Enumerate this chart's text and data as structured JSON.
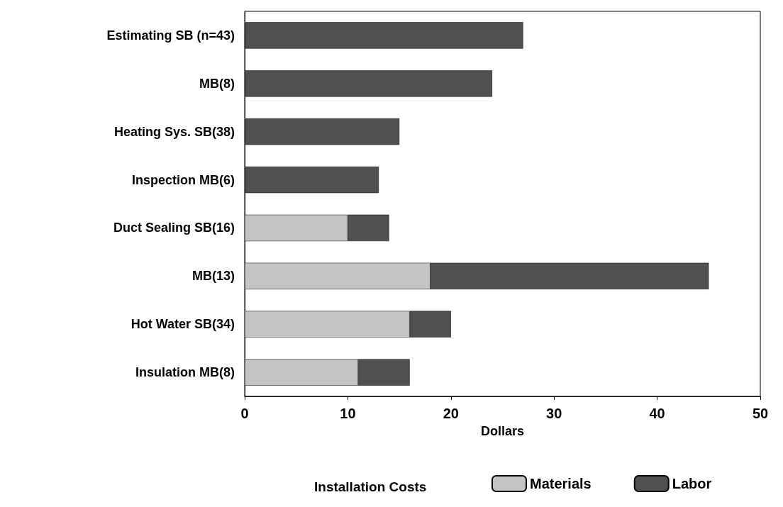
{
  "chart_data": {
    "type": "bar",
    "orientation": "horizontal",
    "stacked": true,
    "xlabel": "Dollars",
    "legend_title": "Installation Costs",
    "legend": "bottom",
    "grid": false,
    "categories": [
      "Estimating SB (n=43)",
      "MB(8)",
      "Heating Sys. SB(38)",
      "Inspection MB(6)",
      "Duct Sealing SB(16)",
      "MB(13)",
      "Hot Water SB(34)",
      "Insulation MB(8)"
    ],
    "series": [
      {
        "name": "Materials",
        "color": "#c4c4c4",
        "values": [
          null,
          null,
          null,
          null,
          10,
          18,
          16,
          11
        ]
      },
      {
        "name": "Labor",
        "color": "#505050",
        "values": [
          27,
          24,
          15,
          13,
          4,
          27,
          4,
          5
        ]
      }
    ],
    "xlim": [
      0,
      50
    ],
    "xticks": [
      0,
      10,
      20,
      30,
      40,
      50
    ]
  }
}
